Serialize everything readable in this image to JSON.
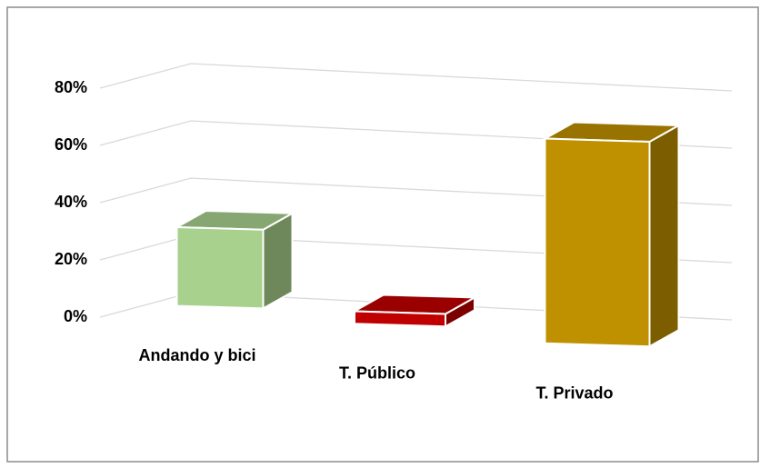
{
  "chart_data": {
    "type": "bar3d",
    "categories": [
      "Andando y bici",
      "T. Público",
      "T. Privado"
    ],
    "values": [
      25,
      4,
      65
    ],
    "colors": [
      "#a9d18e",
      "#c00000",
      "#bf9000"
    ],
    "ylim": [
      0,
      80
    ],
    "yticks": [
      {
        "value": 0,
        "label": "0%"
      },
      {
        "value": 20,
        "label": "20%"
      },
      {
        "value": 40,
        "label": "40%"
      },
      {
        "value": 60,
        "label": "60%"
      },
      {
        "value": 80,
        "label": "80%"
      }
    ],
    "grid": true
  }
}
